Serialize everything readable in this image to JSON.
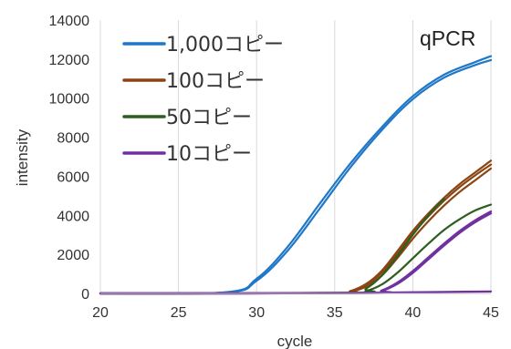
{
  "chart_data": {
    "type": "line",
    "xlabel": "cycle",
    "ylabel": "intensity",
    "xlim": [
      20,
      45
    ],
    "ylim": [
      0,
      14000
    ],
    "x_ticks": [
      "20",
      "25",
      "30",
      "35",
      "40",
      "45"
    ],
    "y_ticks": [
      "0",
      "2000",
      "4000",
      "6000",
      "8000",
      "10000",
      "12000",
      "14000"
    ],
    "grid": "vertical",
    "legend_position": "top-left",
    "annotation": "qPCR",
    "series": [
      {
        "name": "1,000コピー",
        "color": "#1F77C8",
        "replicates": [
          {
            "x": [
              20,
              28,
              30,
              32,
              34,
              36,
              38,
              40,
              42,
              44,
              45
            ],
            "y": [
              0,
              50,
              650,
              2200,
              4300,
              6450,
              8350,
              9950,
              11050,
              11700,
              11950
            ]
          },
          {
            "x": [
              20,
              28,
              30,
              32,
              34,
              36,
              38,
              40,
              42,
              44,
              45
            ],
            "y": [
              0,
              60,
              750,
              2400,
              4550,
              6650,
              8500,
              10100,
              11200,
              11850,
              12150
            ]
          }
        ]
      },
      {
        "name": "100コピー",
        "color": "#8B4513",
        "replicates": [
          {
            "x": [
              20,
              35,
              36,
              37,
              38,
              39,
              40,
              41,
              42,
              43,
              44,
              45
            ],
            "y": [
              0,
              20,
              80,
              350,
              900,
              1800,
              2800,
              3700,
              4500,
              5200,
              5800,
              6400
            ]
          },
          {
            "x": [
              20,
              35,
              36,
              37,
              38,
              39,
              40,
              41,
              42,
              43,
              44,
              45
            ],
            "y": [
              0,
              25,
              100,
              420,
              1050,
              2000,
              3050,
              3950,
              4750,
              5450,
              6050,
              6600
            ]
          },
          {
            "x": [
              20,
              35,
              36,
              37,
              38,
              39,
              40,
              41,
              42,
              43,
              44,
              45
            ],
            "y": [
              0,
              30,
              120,
              480,
              1150,
              2150,
              3200,
              4100,
              4900,
              5600,
              6200,
              6800
            ]
          }
        ]
      },
      {
        "name": "50コピー",
        "color": "#2E5E1E",
        "replicates": [
          {
            "x": [
              20,
              36,
              37,
              38,
              39,
              40,
              41,
              42,
              43,
              44,
              45
            ],
            "y": [
              0,
              20,
              120,
              450,
              1050,
              1800,
              2550,
              3250,
              3800,
              4250,
              4550
            ]
          },
          {
            "x": [
              20,
              36,
              37,
              38,
              39,
              40,
              41,
              42
            ],
            "y": [
              0,
              30,
              250,
              900,
              1900,
              3000,
              4000,
              4850
            ]
          }
        ]
      },
      {
        "name": "10コピー",
        "color": "#7030A0",
        "replicates": [
          {
            "x": [
              20,
              37,
              38,
              39,
              40,
              41,
              42,
              43,
              44,
              45
            ],
            "y": [
              0,
              20,
              150,
              550,
              1150,
              1850,
              2550,
              3200,
              3750,
              4200
            ]
          },
          {
            "x": [
              20,
              37,
              38,
              39,
              40,
              41,
              42,
              43,
              44,
              45
            ],
            "y": [
              0,
              15,
              120,
              480,
              1050,
              1750,
              2450,
              3100,
              3650,
              4100
            ]
          },
          {
            "x": [
              20,
              30,
              35,
              40,
              45
            ],
            "y": [
              0,
              0,
              20,
              60,
              100
            ]
          }
        ]
      }
    ]
  }
}
